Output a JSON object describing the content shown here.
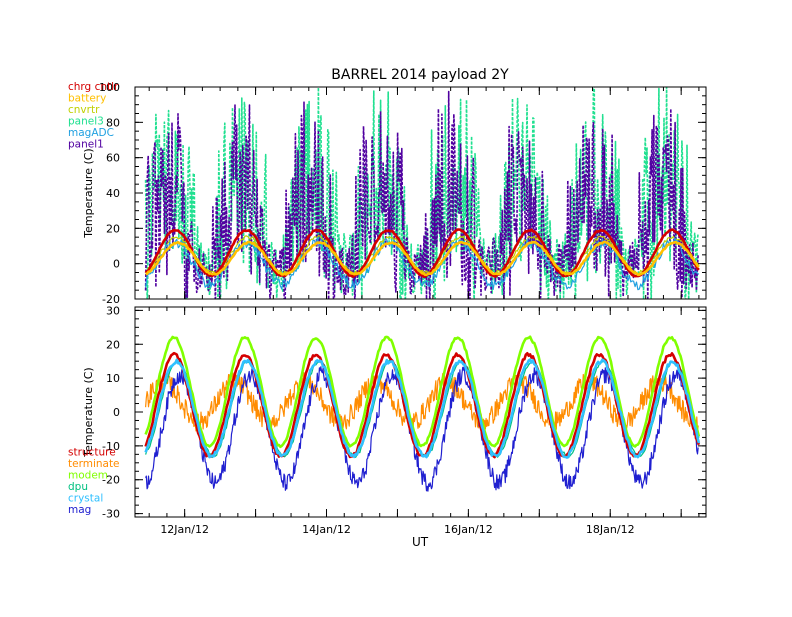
{
  "chart_data": [
    {
      "type": "line",
      "title": "BARREL 2014 payload 2Y",
      "ylabel": "Temperature (C)",
      "xlabel": "",
      "ylim": [
        -20,
        100
      ],
      "yticks": [
        -20,
        0,
        20,
        40,
        60,
        80,
        100
      ],
      "x_range_days_label": "11Jan12 to 19Jan12",
      "legend_position": "top-left",
      "series": [
        {
          "name": "chrg cntlr",
          "color": "#d40000",
          "style": "thick",
          "base": 6,
          "amp": 13,
          "phase": 0.62,
          "noise": 0.4,
          "spike": 0
        },
        {
          "name": "battery",
          "color": "#ffc000",
          "style": "thick",
          "base": 3,
          "amp": 9,
          "phase": 0.66,
          "noise": 0.4,
          "spike": 0
        },
        {
          "name": "cnvrtr",
          "color": "#c0d000",
          "style": "thin",
          "base": 5,
          "amp": 10,
          "phase": 0.64,
          "noise": 1.0,
          "spike": 0
        },
        {
          "name": "panel3",
          "color": "#20e090",
          "style": "spiky",
          "base": 20,
          "amp": 22,
          "phase": 0.55,
          "noise": 18,
          "spike": 55
        },
        {
          "name": "magADC",
          "color": "#20a0e0",
          "style": "thin",
          "base": 0,
          "amp": 12,
          "phase": 0.62,
          "noise": 3,
          "spike": 0
        },
        {
          "name": "panel1",
          "color": "#5000a0",
          "style": "spiky",
          "base": 15,
          "amp": 20,
          "phase": 0.5,
          "noise": 16,
          "spike": 50
        }
      ]
    },
    {
      "type": "line",
      "title": "",
      "ylabel": "Temperature (C)",
      "xlabel": "UT",
      "ylim": [
        -31,
        31
      ],
      "yticks": [
        -30,
        -20,
        -10,
        0,
        10,
        20,
        30
      ],
      "x_ticks": [
        {
          "day": 12,
          "label": "12Jan/12"
        },
        {
          "day": 14,
          "label": "14Jan/12"
        },
        {
          "day": 16,
          "label": "16Jan/12"
        },
        {
          "day": 18,
          "label": "18Jan/12"
        }
      ],
      "legend_position": "bottom-left",
      "series": [
        {
          "name": "structure",
          "color": "#d40000",
          "style": "thick",
          "base": 2,
          "amp": 15,
          "phase": 0.6,
          "noise": 0.5,
          "spike": 0
        },
        {
          "name": "terminate",
          "color": "#ff8c00",
          "style": "noisy",
          "base": 3,
          "amp": 6,
          "phase": 0.45,
          "noise": 3,
          "spike": 0
        },
        {
          "name": "modem",
          "color": "#80ff00",
          "style": "thick",
          "base": 6,
          "amp": 16,
          "phase": 0.6,
          "noise": 0.4,
          "spike": 0
        },
        {
          "name": "dpu",
          "color": "#00c080",
          "style": "thin",
          "base": 1,
          "amp": 14,
          "phase": 0.65,
          "noise": 0.5,
          "spike": 0
        },
        {
          "name": "crystal",
          "color": "#30c0ff",
          "style": "thick",
          "base": 1,
          "amp": 14,
          "phase": 0.63,
          "noise": 0.6,
          "spike": 0
        },
        {
          "name": "mag",
          "color": "#2020d0",
          "style": "noisy",
          "base": -5,
          "amp": 16,
          "phase": 0.68,
          "noise": 2.5,
          "spike": 0
        }
      ]
    }
  ]
}
